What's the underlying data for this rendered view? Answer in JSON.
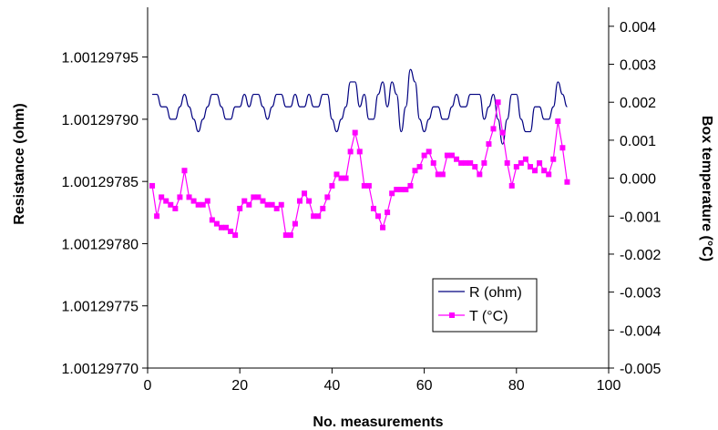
{
  "chart_data": {
    "type": "line",
    "title": "",
    "xlabel": "No. measurements",
    "ylabel_left": "Resistance (ohm)",
    "ylabel_right": "Box temperature (°C)",
    "xlim": [
      0,
      100
    ],
    "ylim_left": [
      1.0012977,
      1.00129799
    ],
    "ylim_right": [
      -0.005,
      0.0045
    ],
    "x_ticks": [
      "0",
      "20",
      "40",
      "60",
      "80",
      "100"
    ],
    "y_left_ticks": [
      "1.00129770",
      "1.00129775",
      "1.00129780",
      "1.00129785",
      "1.00129790",
      "1.00129795"
    ],
    "y_right_ticks": [
      "-0.005",
      "-0.004",
      "-0.003",
      "-0.002",
      "-0.001",
      "0.000",
      "0.001",
      "0.002",
      "0.003",
      "0.004"
    ],
    "grid": false,
    "legend": "bottom-right",
    "series": [
      {
        "name": "R (ohm)",
        "axis": "left",
        "color": "#000080",
        "x": [
          1,
          2,
          3,
          4,
          5,
          6,
          7,
          8,
          9,
          10,
          11,
          12,
          13,
          14,
          15,
          16,
          17,
          18,
          19,
          20,
          21,
          22,
          23,
          24,
          25,
          26,
          27,
          28,
          29,
          30,
          31,
          32,
          33,
          34,
          35,
          36,
          37,
          38,
          39,
          40,
          41,
          42,
          43,
          44,
          45,
          46,
          47,
          48,
          49,
          50,
          51,
          52,
          53,
          54,
          55,
          56,
          57,
          58,
          59,
          60,
          61,
          62,
          63,
          64,
          65,
          66,
          67,
          68,
          69,
          70,
          71,
          72,
          73,
          74,
          75,
          76,
          77,
          78,
          79,
          80,
          81,
          82,
          83,
          84,
          85,
          86,
          87,
          88,
          89,
          90,
          91
        ],
        "values": [
          1.00129792,
          1.00129792,
          1.00129791,
          1.00129791,
          1.0012979,
          1.0012979,
          1.00129791,
          1.00129792,
          1.00129791,
          1.0012979,
          1.00129789,
          1.0012979,
          1.00129791,
          1.00129792,
          1.00129792,
          1.00129791,
          1.0012979,
          1.0012979,
          1.00129791,
          1.00129791,
          1.00129792,
          1.00129791,
          1.00129792,
          1.00129792,
          1.00129791,
          1.0012979,
          1.00129791,
          1.00129792,
          1.00129792,
          1.00129791,
          1.00129791,
          1.00129792,
          1.00129791,
          1.00129791,
          1.00129792,
          1.00129791,
          1.00129791,
          1.00129792,
          1.00129792,
          1.0012979,
          1.00129789,
          1.0012979,
          1.00129791,
          1.00129793,
          1.00129793,
          1.00129791,
          1.00129792,
          1.0012979,
          1.0012979,
          1.00129792,
          1.00129793,
          1.00129791,
          1.00129793,
          1.00129792,
          1.00129789,
          1.00129791,
          1.00129794,
          1.00129793,
          1.0012979,
          1.00129789,
          1.0012979,
          1.00129791,
          1.00129791,
          1.0012979,
          1.0012979,
          1.00129791,
          1.00129792,
          1.00129791,
          1.00129791,
          1.00129792,
          1.00129792,
          1.00129792,
          1.0012979,
          1.00129791,
          1.00129792,
          1.0012979,
          1.00129788,
          1.0012979,
          1.00129792,
          1.00129792,
          1.0012979,
          1.00129789,
          1.00129789,
          1.00129791,
          1.00129791,
          1.0012979,
          1.0012979,
          1.00129791,
          1.00129793,
          1.00129792,
          1.00129791
        ]
      },
      {
        "name": "T (°C)",
        "axis": "right",
        "color": "#FF00FF",
        "x": [
          1,
          2,
          3,
          4,
          5,
          6,
          7,
          8,
          9,
          10,
          11,
          12,
          13,
          14,
          15,
          16,
          17,
          18,
          19,
          20,
          21,
          22,
          23,
          24,
          25,
          26,
          27,
          28,
          29,
          30,
          31,
          32,
          33,
          34,
          35,
          36,
          37,
          38,
          39,
          40,
          41,
          42,
          43,
          44,
          45,
          46,
          47,
          48,
          49,
          50,
          51,
          52,
          53,
          54,
          55,
          56,
          57,
          58,
          59,
          60,
          61,
          62,
          63,
          64,
          65,
          66,
          67,
          68,
          69,
          70,
          71,
          72,
          73,
          74,
          75,
          76,
          77,
          78,
          79,
          80,
          81,
          82,
          83,
          84,
          85,
          86,
          87,
          88,
          89,
          90,
          91
        ],
        "values": [
          -0.0002,
          -0.001,
          -0.0005,
          -0.0006,
          -0.0007,
          -0.0008,
          -0.0005,
          0.0002,
          -0.0005,
          -0.0006,
          -0.0007,
          -0.0007,
          -0.0006,
          -0.0011,
          -0.0012,
          -0.0013,
          -0.0013,
          -0.0014,
          -0.0015,
          -0.0008,
          -0.0006,
          -0.0007,
          -0.0005,
          -0.0005,
          -0.0006,
          -0.0007,
          -0.0007,
          -0.0008,
          -0.0007,
          -0.0015,
          -0.0015,
          -0.0012,
          -0.0006,
          -0.0004,
          -0.0006,
          -0.001,
          -0.001,
          -0.0008,
          -0.0005,
          -0.0002,
          0.0001,
          0.0,
          0.0,
          0.0007,
          0.0012,
          0.0007,
          -0.0002,
          -0.0002,
          -0.0008,
          -0.001,
          -0.0013,
          -0.0009,
          -0.0004,
          -0.0003,
          -0.0003,
          -0.0003,
          -0.0002,
          0.0002,
          0.0003,
          0.0006,
          0.0007,
          0.0004,
          0.0001,
          0.0001,
          0.0006,
          0.0006,
          0.0005,
          0.0004,
          0.0004,
          0.0004,
          0.0003,
          0.0001,
          0.0004,
          0.0009,
          0.0013,
          0.002,
          0.0012,
          0.0004,
          -0.0002,
          0.0003,
          0.0004,
          0.0005,
          0.0003,
          0.0002,
          0.0004,
          0.0002,
          0.0001,
          0.0005,
          0.0015,
          0.0008,
          -0.0001
        ]
      }
    ]
  }
}
